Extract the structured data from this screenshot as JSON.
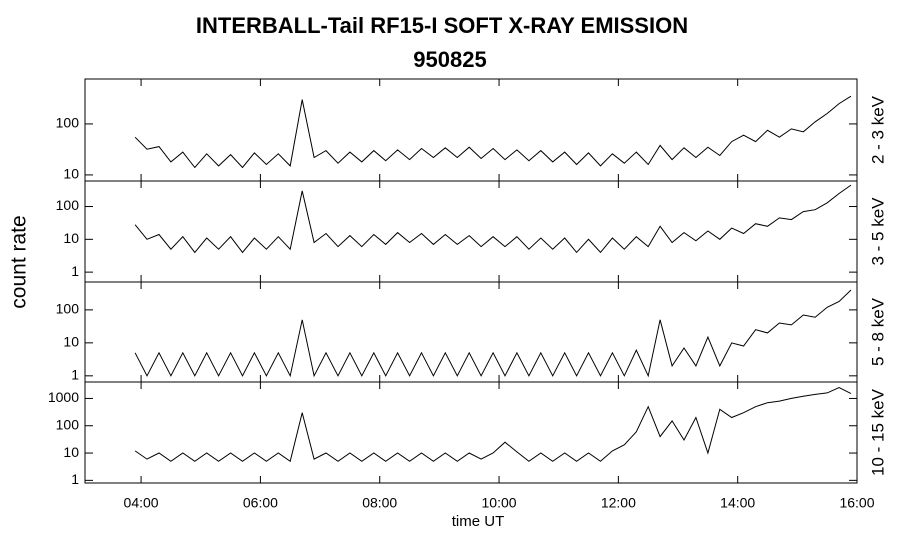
{
  "chart_data": [
    {
      "type": "line",
      "title": "INTERBALL-Tail RF15-I SOFT X-RAY EMISSION",
      "subtitle": "950825",
      "ylabel": "count rate",
      "y2label": "2 - 3 keV",
      "log": true,
      "x": [
        3.9,
        4.1,
        4.3,
        4.5,
        4.7,
        4.9,
        5.1,
        5.3,
        5.5,
        5.7,
        5.9,
        6.1,
        6.3,
        6.5,
        6.7,
        6.9,
        7.1,
        7.3,
        7.5,
        7.7,
        7.9,
        8.1,
        8.3,
        8.5,
        8.7,
        8.9,
        9.1,
        9.3,
        9.5,
        9.7,
        9.9,
        10.1,
        10.3,
        10.5,
        10.7,
        10.9,
        11.1,
        11.3,
        11.5,
        11.7,
        11.9,
        12.1,
        12.3,
        12.5,
        12.7,
        12.9,
        13.1,
        13.3,
        13.5,
        13.7,
        13.9,
        14.1,
        14.3,
        14.5,
        14.7,
        14.9,
        15.1,
        15.3,
        15.5,
        15.7,
        15.9
      ],
      "series": [
        {
          "color": "#000000",
          "values": [
            55,
            32,
            36,
            18,
            28,
            14,
            26,
            15,
            25,
            14,
            27,
            16,
            26,
            15,
            300,
            22,
            30,
            17,
            28,
            18,
            30,
            19,
            31,
            20,
            33,
            22,
            34,
            22,
            35,
            21,
            33,
            20,
            31,
            19,
            30,
            18,
            28,
            16,
            27,
            15,
            26,
            17,
            28,
            16,
            38,
            20,
            34,
            22,
            35,
            24,
            45,
            60,
            45,
            75,
            55,
            80,
            70,
            110,
            160,
            250,
            350
          ]
        }
      ],
      "ylim": [
        7.6,
        760
      ],
      "yticks": [
        10,
        100
      ]
    },
    {
      "type": "line",
      "y2label": "3 - 5 keV",
      "log": true,
      "x": [
        3.9,
        4.1,
        4.3,
        4.5,
        4.7,
        4.9,
        5.1,
        5.3,
        5.5,
        5.7,
        5.9,
        6.1,
        6.3,
        6.5,
        6.7,
        6.9,
        7.1,
        7.3,
        7.5,
        7.7,
        7.9,
        8.1,
        8.3,
        8.5,
        8.7,
        8.9,
        9.1,
        9.3,
        9.5,
        9.7,
        9.9,
        10.1,
        10.3,
        10.5,
        10.7,
        10.9,
        11.1,
        11.3,
        11.5,
        11.7,
        11.9,
        12.1,
        12.3,
        12.5,
        12.7,
        12.9,
        13.1,
        13.3,
        13.5,
        13.7,
        13.9,
        14.1,
        14.3,
        14.5,
        14.7,
        14.9,
        15.1,
        15.3,
        15.5,
        15.7,
        15.9
      ],
      "series": [
        {
          "color": "#000000",
          "values": [
            28,
            10,
            14,
            5,
            12,
            4,
            11,
            5,
            12,
            4,
            11,
            5,
            12,
            5,
            300,
            8,
            15,
            6,
            13,
            6,
            14,
            7,
            16,
            8,
            15,
            7,
            14,
            7,
            13,
            6,
            12,
            6,
            12,
            5,
            11,
            5,
            11,
            4,
            10,
            4,
            11,
            5,
            12,
            6,
            25,
            8,
            16,
            9,
            18,
            10,
            22,
            15,
            30,
            25,
            45,
            40,
            70,
            80,
            130,
            250,
            450
          ]
        }
      ],
      "ylim": [
        0.5,
        600
      ],
      "yticks": [
        1,
        10,
        100
      ]
    },
    {
      "type": "line",
      "y2label": "5 - 8 keV",
      "log": true,
      "x": [
        3.9,
        4.1,
        4.3,
        4.5,
        4.7,
        4.9,
        5.1,
        5.3,
        5.5,
        5.7,
        5.9,
        6.1,
        6.3,
        6.5,
        6.7,
        6.9,
        7.1,
        7.3,
        7.5,
        7.7,
        7.9,
        8.1,
        8.3,
        8.5,
        8.7,
        8.9,
        9.1,
        9.3,
        9.5,
        9.7,
        9.9,
        10.1,
        10.3,
        10.5,
        10.7,
        10.9,
        11.1,
        11.3,
        11.5,
        11.7,
        11.9,
        12.1,
        12.3,
        12.5,
        12.7,
        12.9,
        13.1,
        13.3,
        13.5,
        13.7,
        13.9,
        14.1,
        14.3,
        14.5,
        14.7,
        14.9,
        15.1,
        15.3,
        15.5,
        15.7,
        15.9
      ],
      "series": [
        {
          "color": "#000000",
          "values": [
            5,
            1,
            5,
            1,
            5,
            1,
            5,
            1,
            5,
            1,
            5,
            1,
            5,
            1,
            50,
            1,
            5,
            1,
            5,
            1,
            5,
            1,
            5,
            1,
            5,
            1,
            5,
            1,
            5,
            1,
            5,
            1,
            5,
            1,
            5,
            1,
            5,
            1,
            5,
            1,
            5,
            1,
            6,
            1,
            50,
            2,
            7,
            2,
            15,
            2,
            10,
            8,
            25,
            20,
            40,
            35,
            70,
            60,
            120,
            180,
            400
          ]
        }
      ],
      "ylim": [
        0.65,
        700
      ],
      "yticks": [
        1,
        10,
        100
      ]
    },
    {
      "type": "line",
      "y2label": "10 - 15 keV",
      "xlabel": "time UT",
      "log": true,
      "x": [
        3.9,
        4.1,
        4.3,
        4.5,
        4.7,
        4.9,
        5.1,
        5.3,
        5.5,
        5.7,
        5.9,
        6.1,
        6.3,
        6.5,
        6.7,
        6.9,
        7.1,
        7.3,
        7.5,
        7.7,
        7.9,
        8.1,
        8.3,
        8.5,
        8.7,
        8.9,
        9.1,
        9.3,
        9.5,
        9.7,
        9.9,
        10.1,
        10.3,
        10.5,
        10.7,
        10.9,
        11.1,
        11.3,
        11.5,
        11.7,
        11.9,
        12.1,
        12.3,
        12.5,
        12.7,
        12.9,
        13.1,
        13.3,
        13.5,
        13.7,
        13.9,
        14.1,
        14.3,
        14.5,
        14.7,
        14.9,
        15.1,
        15.3,
        15.5,
        15.7,
        15.9
      ],
      "series": [
        {
          "color": "#000000",
          "values": [
            12,
            6,
            10,
            5,
            10,
            5,
            10,
            5,
            10,
            5,
            10,
            5,
            10,
            5,
            300,
            6,
            10,
            5,
            10,
            5,
            10,
            5,
            10,
            5,
            10,
            5,
            10,
            5,
            10,
            6,
            10,
            25,
            11,
            5,
            10,
            5,
            10,
            5,
            10,
            5,
            12,
            20,
            60,
            500,
            40,
            150,
            30,
            200,
            10,
            400,
            200,
            300,
            500,
            700,
            800,
            1000,
            1200,
            1400,
            1600,
            2500,
            1500
          ]
        }
      ],
      "ylim": [
        0.8,
        4000
      ],
      "yticks": [
        1,
        10,
        100,
        1000
      ],
      "xlim": [
        3.06,
        16
      ],
      "xticks": [
        {
          "value": 4,
          "label": "04:00"
        },
        {
          "value": 6,
          "label": "06:00"
        },
        {
          "value": 8,
          "label": "08:00"
        },
        {
          "value": 10,
          "label": "10:00"
        },
        {
          "value": 12,
          "label": "12:00"
        },
        {
          "value": 14,
          "label": "14:00"
        },
        {
          "value": 16,
          "label": "16:00"
        }
      ]
    }
  ]
}
